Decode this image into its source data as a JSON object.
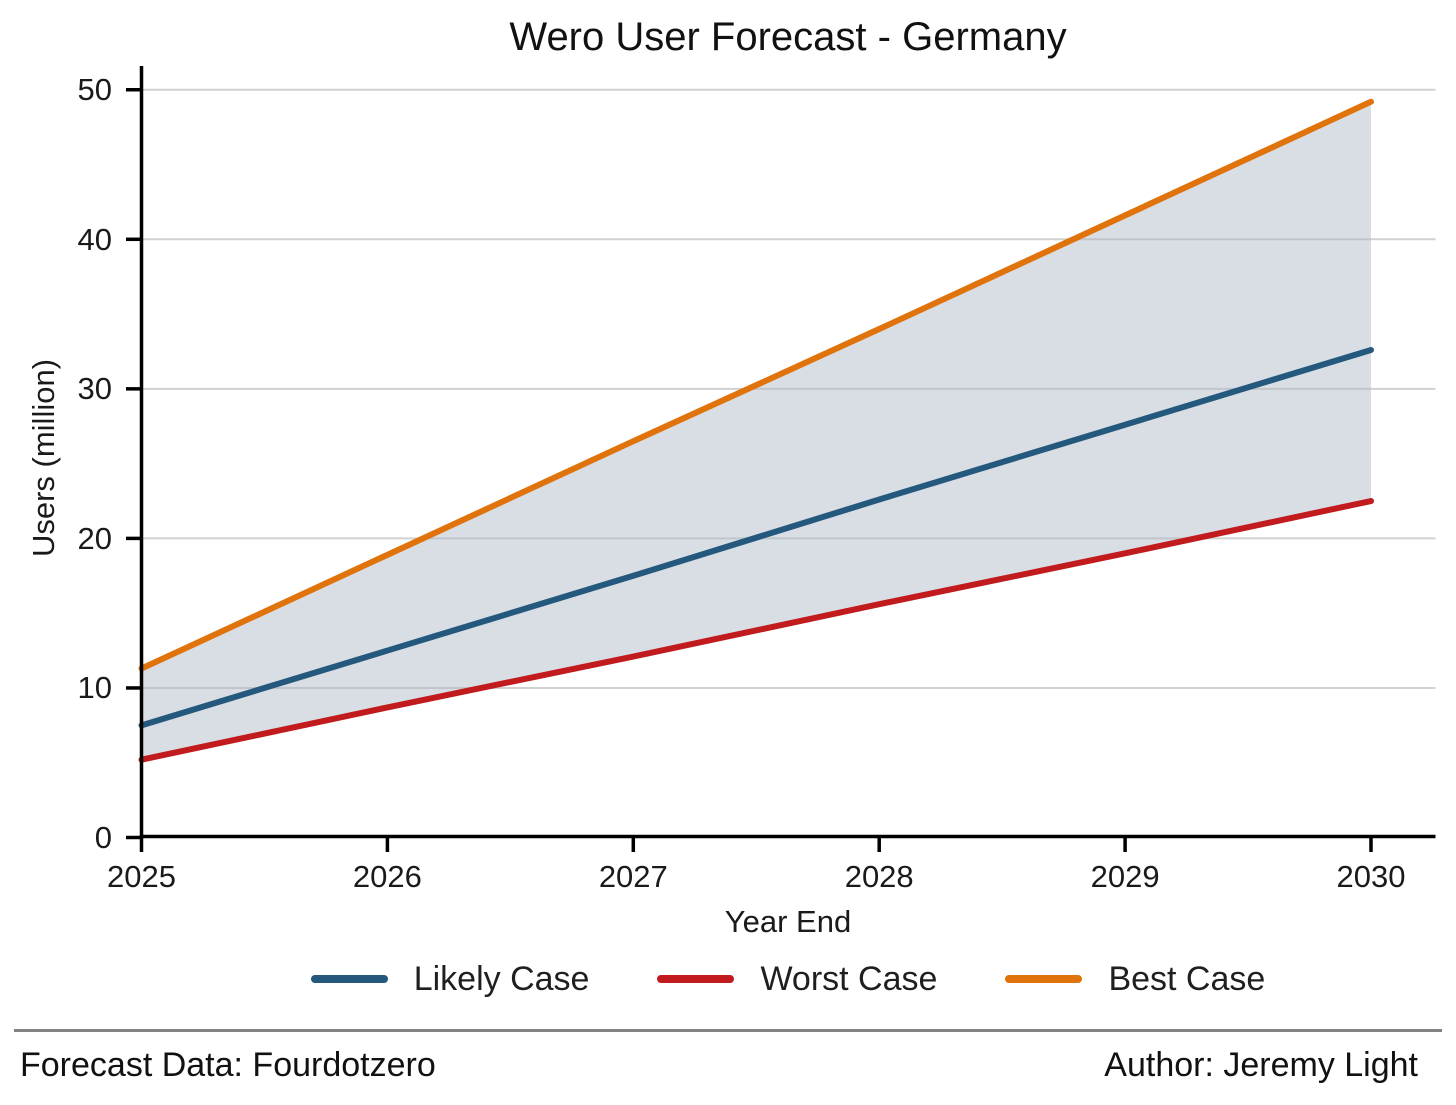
{
  "chart_data": {
    "type": "line",
    "title": "Wero User Forecast - Germany",
    "xlabel": "Year End",
    "ylabel": "Users (million)",
    "x": [
      2025,
      2026,
      2027,
      2028,
      2029,
      2030
    ],
    "xtick_labels": [
      "2025",
      "2026",
      "2027",
      "2028",
      "2029",
      "2030"
    ],
    "yticks": [
      0,
      10,
      20,
      30,
      40,
      50
    ],
    "xlim": [
      2025,
      2030
    ],
    "ylim": [
      0,
      50
    ],
    "grid": "horizontal",
    "legend_position": "bottom",
    "series": [
      {
        "name": "Likely Case",
        "color": "#24587C",
        "values": [
          7.5,
          12.5,
          17.5,
          22.6,
          27.6,
          32.6
        ]
      },
      {
        "name": "Worst Case",
        "color": "#C11B1E",
        "values": [
          5.2,
          8.7,
          12.1,
          15.6,
          19.0,
          22.5
        ]
      },
      {
        "name": "Best Case",
        "color": "#E0730B",
        "values": [
          11.3,
          18.9,
          26.5,
          34.0,
          41.6,
          49.2
        ]
      }
    ],
    "band": {
      "lower_series": "Worst Case",
      "upper_series": "Best Case",
      "fill_color": "#AAB5C5",
      "fill_opacity": 0.45
    }
  },
  "footer": {
    "left": "Forecast Data: Fourdotzero",
    "right": "Author: Jeremy Light"
  },
  "colors": {
    "background": "#FFFFFF",
    "grid": "#D1D1D1",
    "axis": "#000000",
    "divider": "#828282",
    "text": "#1A1A1A"
  }
}
